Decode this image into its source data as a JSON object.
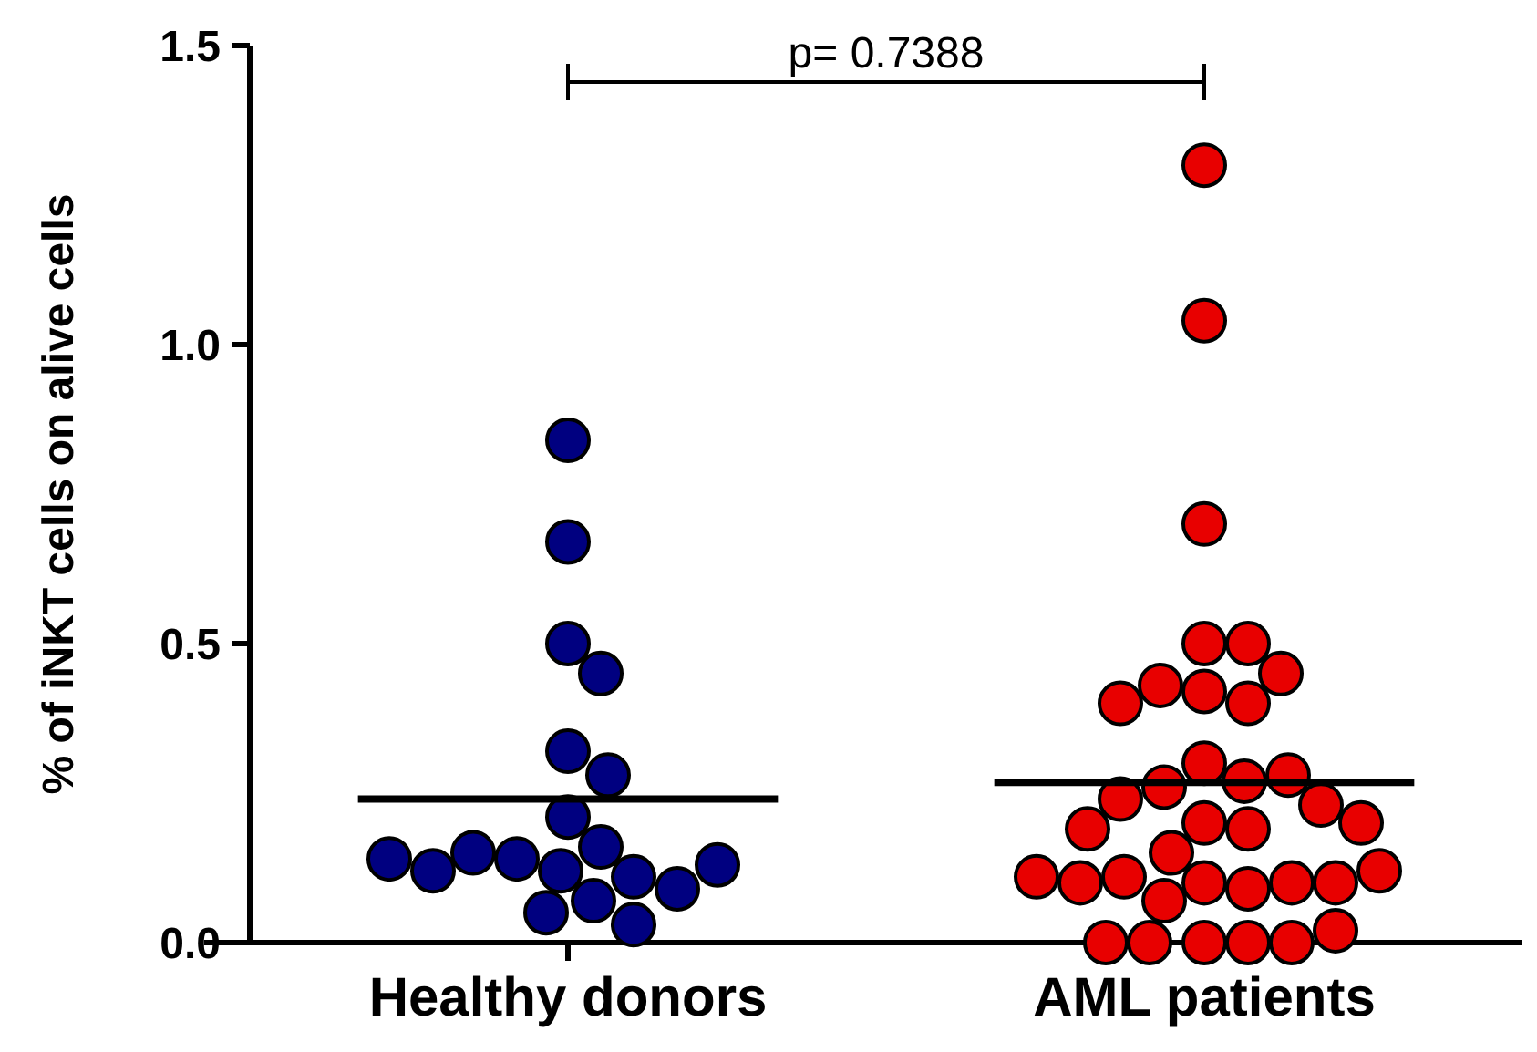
{
  "chart_data": {
    "type": "scatter",
    "ylabel": "% of iNKT cells on alive cells",
    "categories": [
      "Healthy donors",
      "AML patients"
    ],
    "series": [
      {
        "color": "#000080",
        "x": [
          "Healthy donors",
          "Healthy donors",
          "Healthy donors",
          "Healthy donors",
          "Healthy donors",
          "Healthy donors",
          "Healthy donors",
          "Healthy donors",
          "Healthy donors",
          "Healthy donors",
          "Healthy donors",
          "Healthy donors",
          "Healthy donors",
          "Healthy donors",
          "Healthy donors",
          "Healthy donors",
          "Healthy donors",
          "Healthy donors",
          "Healthy donors"
        ],
        "values": [
          0.84,
          0.67,
          0.5,
          0.45,
          0.32,
          0.28,
          0.21,
          0.16,
          0.12,
          0.14,
          0.11,
          0.15,
          0.07,
          0.05,
          0.09,
          0.12,
          0.13,
          0.14,
          0.03
        ]
      },
      {
        "color": "#e80000",
        "x": [
          "AML patients",
          "AML patients",
          "AML patients",
          "AML patients",
          "AML patients",
          "AML patients",
          "AML patients",
          "AML patients",
          "AML patients",
          "AML patients",
          "AML patients",
          "AML patients",
          "AML patients",
          "AML patients",
          "AML patients",
          "AML patients",
          "AML patients",
          "AML patients",
          "AML patients",
          "AML patients",
          "AML patients",
          "AML patients",
          "AML patients",
          "AML patients",
          "AML patients",
          "AML patients",
          "AML patients",
          "AML patients",
          "AML patients",
          "AML patients",
          "AML patients",
          "AML patients",
          "AML patients",
          "AML patients",
          "AML patients",
          "AML patients"
        ],
        "values": [
          1.3,
          1.04,
          0.7,
          0.5,
          0.5,
          0.42,
          0.43,
          0.4,
          0.45,
          0.4,
          0.3,
          0.27,
          0.26,
          0.28,
          0.24,
          0.23,
          0.2,
          0.19,
          0.19,
          0.2,
          0.15,
          0.1,
          0.09,
          0.07,
          0.11,
          0.1,
          0.1,
          0.1,
          0.11,
          0.12,
          0,
          0,
          0,
          0,
          0,
          0.02
        ]
      }
    ],
    "ref_lines": [
      {
        "axis": "y",
        "value": 0.24,
        "color": "#000000"
      },
      {
        "axis": "y",
        "value": 0.268,
        "color": "#000000"
      }
    ],
    "ylim": [
      0,
      1.5
    ],
    "yticks": [
      {
        "value": 0,
        "label": "0.0"
      },
      0.5,
      {
        "value": 1,
        "label": "1.0"
      },
      1.5
    ],
    "marker": "circle",
    "grid": false,
    "annotations": [
      "p= 0.7388"
    ]
  }
}
